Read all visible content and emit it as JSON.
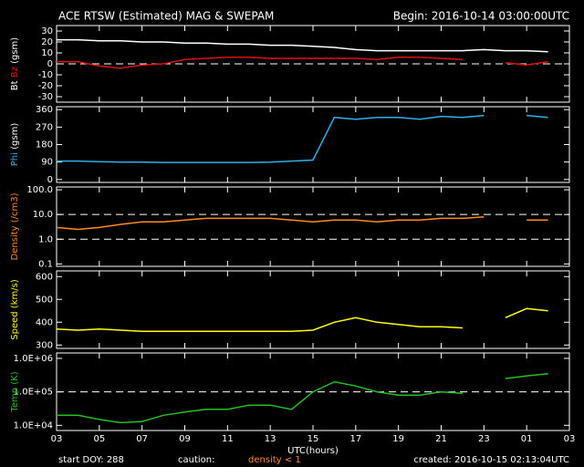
{
  "title": "ACE RTSW (Estimated) MAG & SWEPAM",
  "begin": "Begin: 2016-10-14 03:00:00UTC",
  "x_axis": {
    "label": "UTC(hours)",
    "xlim": [
      0,
      24
    ],
    "x": [
      0,
      1,
      2,
      3,
      4,
      5,
      6,
      7,
      8,
      9,
      10,
      11,
      12,
      13,
      14,
      15,
      16,
      17,
      18,
      19,
      20,
      21,
      22,
      23,
      24
    ],
    "xticks": [
      {
        "value": 0,
        "label": "03"
      },
      {
        "value": 2,
        "label": "05"
      },
      {
        "value": 4,
        "label": "07"
      },
      {
        "value": 6,
        "label": "09"
      },
      {
        "value": 8,
        "label": "11"
      },
      {
        "value": 10,
        "label": "13"
      },
      {
        "value": 12,
        "label": "15"
      },
      {
        "value": 14,
        "label": "17"
      },
      {
        "value": 16,
        "label": "19"
      },
      {
        "value": 18,
        "label": "21"
      },
      {
        "value": 20,
        "label": "23"
      },
      {
        "value": 22,
        "label": "01"
      },
      {
        "value": 24,
        "label": "03"
      }
    ]
  },
  "chart_data": [
    {
      "type": "line",
      "ylabel": "(gsm)",
      "ylim": [
        -35,
        35
      ],
      "yticks": [
        30,
        20,
        10,
        0,
        -10,
        -20,
        -30
      ],
      "hlines": [
        0
      ],
      "series": [
        {
          "name": "Bt",
          "color": "#ffffff",
          "values": [
            22,
            22,
            21,
            21,
            20,
            20,
            19,
            19,
            18,
            18,
            17,
            17,
            16,
            15,
            13,
            12,
            12,
            12,
            12,
            12,
            13,
            12,
            12,
            11,
            null
          ]
        },
        {
          "name": "Bz",
          "color": "#e01010",
          "values": [
            2,
            2,
            -2,
            -4,
            -1,
            0,
            4,
            5,
            6,
            6,
            5,
            5,
            5,
            5,
            5,
            4,
            6,
            6,
            5,
            4,
            null,
            1,
            -1,
            2,
            null
          ]
        }
      ]
    },
    {
      "type": "line",
      "ylabel": "(gsm)",
      "ylim": [
        -15,
        375
      ],
      "yticks": [
        0,
        90,
        180,
        270,
        360
      ],
      "series": [
        {
          "name": "Phi",
          "color": "#30b0e8",
          "values": [
            95,
            95,
            92,
            90,
            90,
            88,
            88,
            88,
            88,
            88,
            90,
            95,
            100,
            320,
            310,
            320,
            320,
            310,
            325,
            320,
            330,
            null,
            330,
            320,
            null
          ]
        }
      ]
    },
    {
      "type": "line",
      "ylabel": "Density (/cm3)",
      "color": "#ff8c1a",
      "log": true,
      "ylim": [
        0.08,
        130
      ],
      "yticks": [
        0.1,
        {
          "value": 1,
          "label": "1.0"
        },
        {
          "value": 10,
          "label": "10.0"
        },
        {
          "value": 100,
          "label": "100.0"
        }
      ],
      "hlines": [
        1,
        10
      ],
      "series": [
        {
          "color": "#ff8c1a",
          "values": [
            3,
            2.5,
            3,
            4,
            5,
            5,
            6,
            7,
            7,
            7,
            7,
            6,
            5,
            6,
            6,
            5,
            6,
            6,
            7,
            7,
            8,
            null,
            6,
            6,
            null
          ]
        }
      ]
    },
    {
      "type": "line",
      "ylabel": "Speed (km/s)",
      "color": "#ffff00",
      "ylim": [
        285,
        625
      ],
      "yticks": [
        300,
        400,
        500,
        600
      ],
      "series": [
        {
          "color": "#ffff00",
          "values": [
            370,
            365,
            370,
            365,
            360,
            360,
            360,
            360,
            360,
            360,
            360,
            360,
            365,
            400,
            420,
            400,
            390,
            380,
            380,
            375,
            null,
            420,
            460,
            450,
            null
          ]
        }
      ]
    },
    {
      "type": "line",
      "ylabel": "Temp (K)",
      "color": "#22c022",
      "log": true,
      "ylim": [
        7000,
        1450000
      ],
      "yticks": [
        {
          "value": 10000,
          "label": "1.0E+04"
        },
        {
          "value": 100000,
          "label": "1.0E+05"
        },
        {
          "value": 1000000,
          "label": "1.0E+06"
        }
      ],
      "hlines": [
        100000
      ],
      "series": [
        {
          "color": "#22c022",
          "values": [
            20000,
            20000,
            15000,
            12000,
            13000,
            20000,
            25000,
            30000,
            30000,
            40000,
            40000,
            30000,
            100000,
            200000,
            150000,
            100000,
            80000,
            80000,
            100000,
            90000,
            null,
            250000,
            300000,
            350000,
            null
          ]
        }
      ]
    }
  ],
  "footer": {
    "start": "start DOY: 288",
    "caution": "caution:",
    "caution_note": "density < 1",
    "created": "created: 2016-10-15 02:13:04UTC"
  }
}
